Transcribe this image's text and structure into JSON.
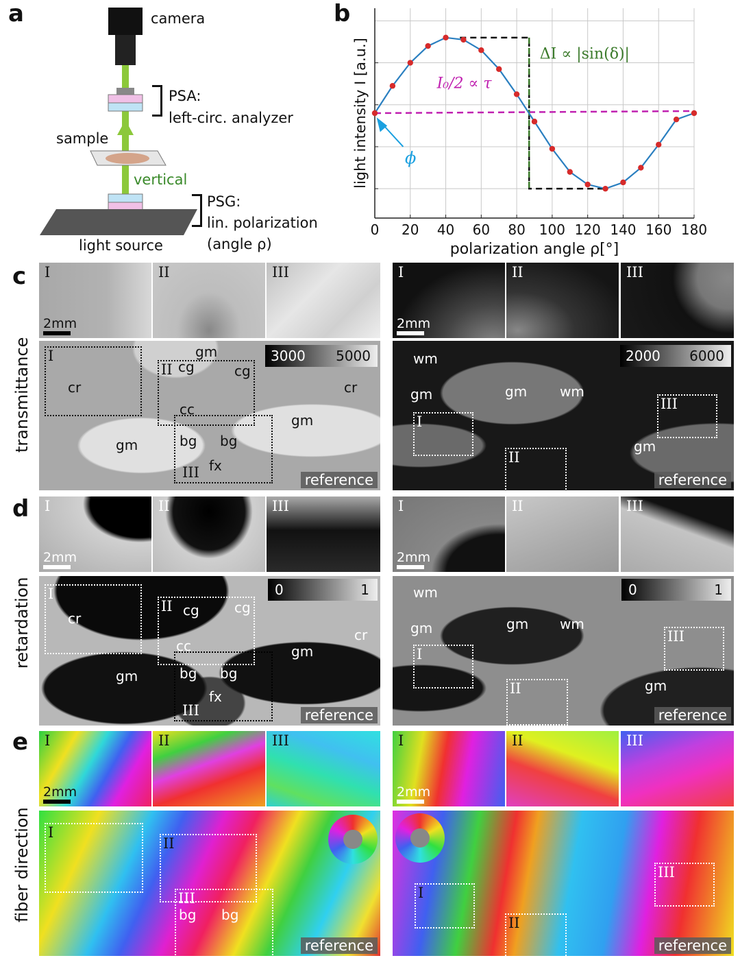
{
  "panels": {
    "a": "a",
    "b": "b",
    "c": "c",
    "d": "d",
    "e": "e"
  },
  "setup": {
    "camera": "camera",
    "psa_title": "PSA:",
    "psa_desc": "left-circ. analyzer",
    "sample": "sample",
    "vertical": "vertical",
    "psg_title": "PSG:",
    "psg_desc": "lin. polarization",
    "psg_angle": "(angle ρ)",
    "light_source": "light source"
  },
  "colors": {
    "curve": "#2a7fc0",
    "points": "#d62b2b",
    "mean_line": "#c020b0",
    "delta_line": "#3a7a2a",
    "phi_arrow": "#1aa0e0",
    "beam": "#8cc83a"
  },
  "chart_data": {
    "type": "line",
    "xlabel": "polarization angle ρ[°]",
    "ylabel": "light intensity I [a.u.]",
    "xlim": [
      0,
      180
    ],
    "xticks": [
      0,
      20,
      40,
      60,
      80,
      100,
      120,
      140,
      160,
      180
    ],
    "ylim": [
      0,
      1
    ],
    "grid": true,
    "annotations": {
      "delta": "ΔI ∝ |sin(δ)|",
      "mean": "I₀/2 ∝ τ",
      "phi": "ϕ"
    },
    "series": [
      {
        "x": [
          0,
          10,
          20,
          30,
          40,
          50,
          60,
          70,
          80,
          90,
          100,
          110,
          120,
          130,
          140,
          150,
          160,
          170,
          180
        ],
        "y": [
          0.5,
          0.63,
          0.74,
          0.82,
          0.86,
          0.85,
          0.8,
          0.71,
          0.59,
          0.46,
          0.33,
          0.22,
          0.16,
          0.14,
          0.17,
          0.24,
          0.35,
          0.47,
          0.5
        ]
      }
    ]
  },
  "rows": {
    "c": {
      "label": "transmittance"
    },
    "d": {
      "label": "retardation"
    },
    "e": {
      "label": "fiber direction"
    }
  },
  "roman": {
    "i": "I",
    "ii": "II",
    "iii": "III"
  },
  "scale": "2mm",
  "reference": "reference",
  "regions": {
    "cr": "cr",
    "gm": "gm",
    "cg": "cg",
    "cc": "cc",
    "bg": "bg",
    "fx": "fx",
    "wm": "wm"
  },
  "cbars": {
    "c_left": [
      "3000",
      "5000"
    ],
    "c_right": [
      "2000",
      "6000"
    ],
    "d_left": [
      "0",
      "1"
    ],
    "d_right": [
      "0",
      "1"
    ]
  }
}
